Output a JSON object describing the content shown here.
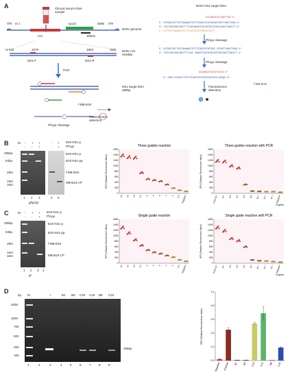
{
  "panels": {
    "A": {
      "letter": "A",
      "sample_label": "Clinical Serum DNA\nsample",
      "genome_label": "B19V genome",
      "itr_left": "ITR",
      "nt1": "nt 1",
      "nt5596": "5596",
      "itr_right": "ITR",
      "ns1_label": "ns1",
      "vp_label": "vp1/2",
      "scale_label": "1kbDa",
      "frag_label": "B19V ns1\n2016bp",
      "nt615": "nt 615",
      "nt1579": "1579",
      "nt1863": "1863",
      "nt2631": "2631",
      "ns1f": "NS1-F",
      "ns1r": "NS1-R",
      "pcr": "PCR",
      "target_label": "NS1 target DNA\n285bp",
      "cleavage": "PfAgo cleavage",
      "probe": "f-MB-B19",
      "fluor": "Fluorescence\ndetection",
      "right_title": "B19V NS1 target DNA",
      "seq_gt_top": "ATCAGGTACCAATTGA-5'",
      "seq1_top": "5'-ATGGCCATTGCTAAAAGTGTTCCAGTATATGGCATGGTTAACTGGA-3'",
      "seq1_bot": "3'-TACCGGTAACGATTTTCACAAGGTCATATACCGTACCAATTGACCT-5'",
      "seq_gr_bot": "5'-ATTGCTAAAAGTGTTCCAGTATATGGCATGGTT",
      "pfago1": "PfAgo cleavage",
      "seq2_top": "5'-ATGGCCATTGCTAAAAGTGTTCCAGTATATGGC ATGGTTAACTGGA-3'",
      "seq2_bot": "3'-TACCGGTAACGATTTTCAC AAGGTCATATACCGTACCAATTGACCT-5'",
      "pfago2": "PfAgo cleavage",
      "seq3_top": "ACAAGGTCATATACCG-5'",
      "seq3_bot": "5'-FAM-CGCACCTGTTCCAGTATATGGCGGTGCG-BHQ1-3'",
      "mb_label": "f-MB-B19",
      "fluor2": "Fluorescence\ndetection"
    },
    "B": {
      "letter": "B",
      "gel_legend": [
        "B19 NS1-p",
        "PfAgo"
      ],
      "signs_row1": [
        "-",
        "+",
        "+",
        "-",
        "+"
      ],
      "signs_row2": [
        "-",
        "-",
        "+",
        "-",
        "+"
      ],
      "m": "M",
      "sizes": [
        "285bp",
        "84bp",
        "28nt",
        "19nt",
        "16nt"
      ],
      "bands_right": [
        "B19 NS1-p",
        "B19 NS1-pp",
        "f-MB-B19",
        "MB-B19 CP"
      ],
      "lanes": [
        "1",
        "2",
        "3",
        "4",
        "5"
      ],
      "bottom_label": "gf/gr/gt"
    },
    "C": {
      "letter": "C",
      "gel_legend": [
        "B19 NS1-p",
        "PfAgo"
      ],
      "signs_row1": [
        "-",
        "+",
        "+"
      ],
      "signs_row2": [
        "-",
        "-",
        "+"
      ],
      "m": "M",
      "sizes": [
        "285bp",
        "84bp",
        "28nt",
        "19nt",
        "16nt"
      ],
      "bands_right": [
        "B19 NS1-p",
        "B19 NS1-pp",
        "f-MB-B19",
        "MB-B19 CP"
      ],
      "lanes": [
        "1",
        "2",
        "3",
        "4"
      ],
      "bottom_label": "gr"
    },
    "D": {
      "letter": "D",
      "bp": "bp",
      "m": "M",
      "plus": "+",
      "lane_heads": [
        "B1",
        "B5",
        "C20",
        "C15",
        "B8",
        "C24"
      ],
      "sizes": [
        "2000",
        "1000",
        "750",
        "500",
        "250",
        "100"
      ],
      "band_label": "285bp",
      "lanes": [
        "1",
        "2",
        "3",
        "4",
        "5",
        "6",
        "7",
        "8",
        "9"
      ]
    }
  },
  "chart_data": [
    {
      "type": "scatter",
      "title": "Three guides reaction",
      "ylabel": "RFV (Relative Fluorescence Value)",
      "ylim": [
        0,
        1600
      ],
      "yticks": [
        0,
        200,
        400,
        600,
        800,
        1000,
        1200,
        1400,
        1600
      ],
      "categories": [
        "20",
        "15",
        "10",
        "7.5",
        "5",
        "4",
        "3",
        "2",
        "1",
        "0.5",
        "Negative"
      ],
      "values": [
        1380,
        1320,
        1300,
        750,
        520,
        480,
        440,
        320,
        190,
        110,
        70
      ]
    },
    {
      "type": "scatter",
      "title": "Three guides reaction with PCR",
      "ylabel": "RFV (Relative Fluorescence Value)",
      "xlabel": "Copies",
      "ylim": [
        0,
        1600
      ],
      "yticks": [
        0,
        200,
        400,
        600,
        800,
        1000,
        1200,
        1400,
        1600
      ],
      "categories": [
        "6.52×10⁵",
        "10⁴",
        "10³",
        "10²",
        "10¹",
        "10⁰",
        "10⁻¹",
        "10⁻²",
        "10⁻³",
        "Negative"
      ],
      "values": [
        1180,
        1160,
        1000,
        920,
        320,
        80,
        70,
        60,
        60,
        40
      ]
    },
    {
      "type": "scatter",
      "title": "Single guide reaction",
      "ylabel": "RFV (Relative Fluorescence Value)",
      "ylim": [
        0,
        1600
      ],
      "yticks": [
        0,
        200,
        400,
        600,
        800,
        1000,
        1200,
        1400,
        1600
      ],
      "categories": [
        "20",
        "15",
        "10",
        "7.5",
        "5",
        "4",
        "3",
        "2",
        "1",
        "0.5",
        "Negative"
      ],
      "values": [
        1300,
        1100,
        850,
        650,
        480,
        400,
        350,
        280,
        220,
        120,
        70
      ]
    },
    {
      "type": "scatter",
      "title": "Single guide reaction with PCR",
      "ylabel": "RFV (Relative Fluorescence Value)",
      "xlabel": "Copies",
      "ylim": [
        0,
        1600
      ],
      "yticks": [
        0,
        200,
        400,
        600,
        800,
        1000,
        1200,
        1400,
        1600
      ],
      "categories": [
        "6.52×10⁵",
        "10⁴",
        "10³",
        "10²",
        "10¹",
        "10⁰",
        "10⁻¹",
        "10⁻²",
        "10⁻³",
        "Negative"
      ],
      "values": [
        1300,
        1180,
        900,
        820,
        600,
        120,
        90,
        80,
        60,
        40
      ]
    },
    {
      "type": "bar",
      "ylabel": "RFV (Relative Fluorescence Value)",
      "ylim": [
        0,
        1.0
      ],
      "yticks": [
        0,
        0.2,
        0.4,
        0.6,
        0.8,
        1.0
      ],
      "categories": [
        "Negative",
        "Positive",
        "B1",
        "B5",
        "C20",
        "C15",
        "B8",
        "C24"
      ],
      "values": [
        0.02,
        0.45,
        0.01,
        0.01,
        0.54,
        0.69,
        0.01,
        0.19
      ],
      "errors": [
        0.01,
        0.03,
        0.0,
        0.0,
        0.02,
        0.1,
        0.0,
        0.01
      ],
      "colors": [
        "#c0392b",
        "#8b2a1e",
        "#8b2a1e",
        "#8b2a1e",
        "#c9c96a",
        "#5bb56b",
        "#9a6bb5",
        "#2a4ab5"
      ]
    }
  ]
}
